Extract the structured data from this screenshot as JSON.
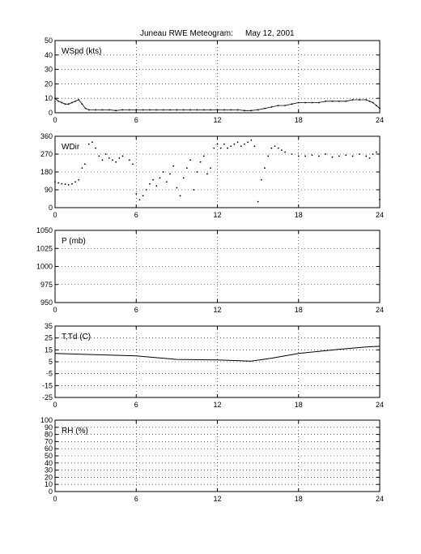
{
  "header": {
    "title_left": "Juneau RWE Meteogram:",
    "title_right": "May 12, 2001"
  },
  "chart_data": [
    {
      "type": "scatter",
      "panel_label": "WSpd (kts)",
      "xlim": [
        0,
        24
      ],
      "xticks": [
        0,
        6,
        12,
        18,
        24
      ],
      "ylim": [
        0,
        50
      ],
      "yticks": [
        0,
        10,
        20,
        30,
        40,
        50
      ],
      "grid": true,
      "series": [
        {
          "color": "#000000",
          "x": [
            0,
            0.25,
            0.5,
            0.75,
            1.0,
            1.25,
            1.5,
            1.75,
            2.0,
            2.25,
            2.5,
            3.0,
            3.5,
            4.0,
            4.5,
            5.0,
            5.5,
            6.0,
            6.5,
            7.0,
            7.5,
            8.0,
            8.5,
            9.0,
            9.5,
            10.0,
            10.5,
            11.0,
            11.5,
            12.0,
            12.5,
            13.0,
            13.5,
            14.0,
            14.5,
            15.0,
            15.5,
            16.0,
            16.5,
            17.0,
            17.5,
            18.0,
            18.5,
            19.0,
            19.5,
            20.0,
            20.5,
            21.0,
            21.5,
            22.0,
            22.5,
            23.0,
            23.25,
            23.5,
            23.75,
            24.0
          ],
          "y": [
            10,
            8,
            7,
            6,
            6,
            7,
            8,
            9,
            6,
            3,
            2,
            2,
            2,
            2,
            1.5,
            2,
            2,
            2,
            2,
            2,
            2,
            2,
            2,
            2,
            2,
            2,
            2,
            2,
            2,
            2,
            2,
            2,
            2,
            1.5,
            1.5,
            2,
            3,
            4,
            5,
            5,
            6,
            7,
            7,
            7,
            7,
            8,
            8,
            8,
            8,
            9,
            9,
            9,
            8,
            7,
            5,
            3
          ]
        }
      ]
    },
    {
      "type": "scatter",
      "panel_label": "WDir",
      "xlim": [
        0,
        24
      ],
      "xticks": [
        0,
        6,
        12,
        18,
        24
      ],
      "ylim": [
        0,
        360
      ],
      "yticks": [
        0,
        90,
        180,
        270,
        360
      ],
      "grid": true,
      "series": [
        {
          "color": "#000000",
          "x": [
            0,
            0.25,
            0.5,
            0.75,
            1.0,
            1.25,
            1.5,
            1.75,
            2.0,
            2.2,
            2.5,
            2.75,
            3.0,
            3.25,
            3.5,
            3.75,
            4.0,
            4.25,
            4.5,
            4.75,
            5.0,
            5.5,
            5.75,
            6.0,
            6.25,
            6.5,
            6.75,
            7.0,
            7.25,
            7.5,
            7.75,
            8.0,
            8.25,
            8.5,
            8.75,
            9.0,
            9.25,
            9.5,
            9.75,
            10.0,
            10.25,
            10.5,
            10.75,
            11.0,
            11.25,
            11.5,
            11.75,
            12.0,
            12.25,
            12.5,
            12.75,
            13.0,
            13.25,
            13.5,
            13.75,
            14.0,
            14.25,
            14.5,
            14.75,
            15.0,
            15.25,
            15.5,
            15.75,
            16.0,
            16.25,
            16.5,
            16.75,
            17.0,
            17.5,
            18.0,
            18.5,
            19.0,
            19.5,
            20.0,
            20.5,
            21.0,
            21.5,
            22.0,
            22.5,
            23.0,
            23.25,
            23.5,
            23.75,
            24.0
          ],
          "y": [
            130,
            125,
            120,
            118,
            115,
            120,
            130,
            140,
            200,
            220,
            320,
            330,
            300,
            260,
            240,
            270,
            250,
            240,
            230,
            250,
            260,
            240,
            220,
            70,
            40,
            60,
            90,
            120,
            140,
            110,
            150,
            180,
            130,
            170,
            210,
            100,
            60,
            150,
            200,
            240,
            90,
            180,
            230,
            260,
            170,
            200,
            300,
            320,
            300,
            320,
            300,
            310,
            320,
            330,
            310,
            320,
            330,
            340,
            310,
            30,
            140,
            200,
            260,
            300,
            310,
            300,
            290,
            280,
            270,
            260,
            260,
            265,
            260,
            270,
            255,
            260,
            265,
            260,
            270,
            260,
            250,
            270,
            280,
            40
          ]
        }
      ]
    },
    {
      "type": "line",
      "panel_label": "P (mb)",
      "xlim": [
        0,
        24
      ],
      "xticks": [
        0,
        6,
        12,
        18,
        24
      ],
      "ylim": [
        950,
        1050
      ],
      "yticks": [
        950,
        975,
        1000,
        1025,
        1050
      ],
      "grid": true,
      "series": []
    },
    {
      "type": "line",
      "panel_label": "T,Td (C)",
      "xlim": [
        0,
        24
      ],
      "xticks": [
        0,
        6,
        12,
        18,
        24
      ],
      "ylim": [
        -25,
        35
      ],
      "yticks": [
        -25,
        -15,
        -5,
        5,
        15,
        25,
        35
      ],
      "grid": true,
      "series": [
        {
          "color": "#000000",
          "x": [
            0,
            3,
            6,
            9,
            12,
            14.5,
            16,
            18,
            21,
            23,
            24
          ],
          "y": [
            12,
            11,
            10,
            7,
            6.5,
            5.5,
            8,
            12,
            15.5,
            17.5,
            18
          ]
        }
      ]
    },
    {
      "type": "line",
      "panel_label": "RH (%)",
      "xlim": [
        0,
        24
      ],
      "xticks": [
        0,
        6,
        12,
        18,
        24
      ],
      "ylim": [
        0,
        100
      ],
      "yticks": [
        0,
        10,
        20,
        30,
        40,
        50,
        60,
        70,
        80,
        90,
        100
      ],
      "grid": true,
      "series": []
    }
  ]
}
